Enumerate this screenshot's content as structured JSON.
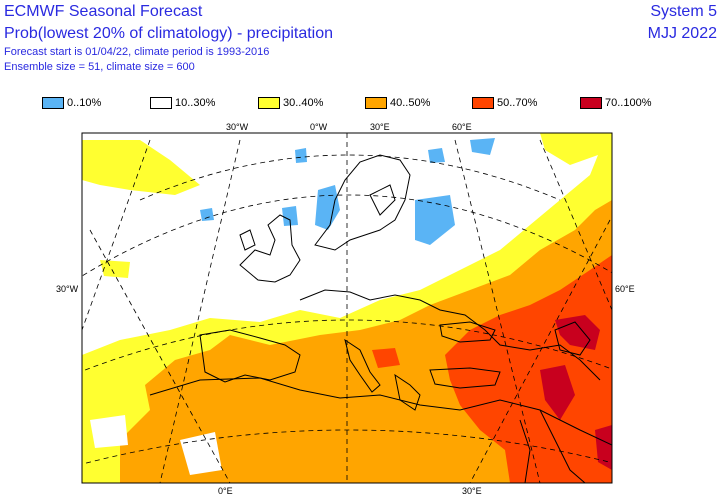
{
  "header": {
    "title": "ECMWF Seasonal Forecast",
    "subtitle": "Prob(lowest 20% of climatology) - precipitation",
    "forecast_line": "Forecast start is 01/04/22, climate period is 1993-2016",
    "ensemble_line": "Ensemble size = 51, climate size = 600",
    "system": "System 5",
    "period": "MJJ 2022"
  },
  "legend": [
    {
      "label": "0..10%",
      "color": "#5ab4f5"
    },
    {
      "label": "10..30%",
      "color": "#ffffff"
    },
    {
      "label": "30..40%",
      "color": "#ffff30"
    },
    {
      "label": "40..50%",
      "color": "#ffa500"
    },
    {
      "label": "50..70%",
      "color": "#ff4500"
    },
    {
      "label": "70..100%",
      "color": "#c8001e"
    }
  ],
  "map": {
    "axis_labels": {
      "top_30w": "30°W",
      "top_0w": "0°W",
      "top_30e": "30°E",
      "top_60e": "60°E",
      "left_30w": "30°W",
      "right_60e": "60°E",
      "bottom_0e": "0°E",
      "bottom_30e": "30°E"
    }
  }
}
